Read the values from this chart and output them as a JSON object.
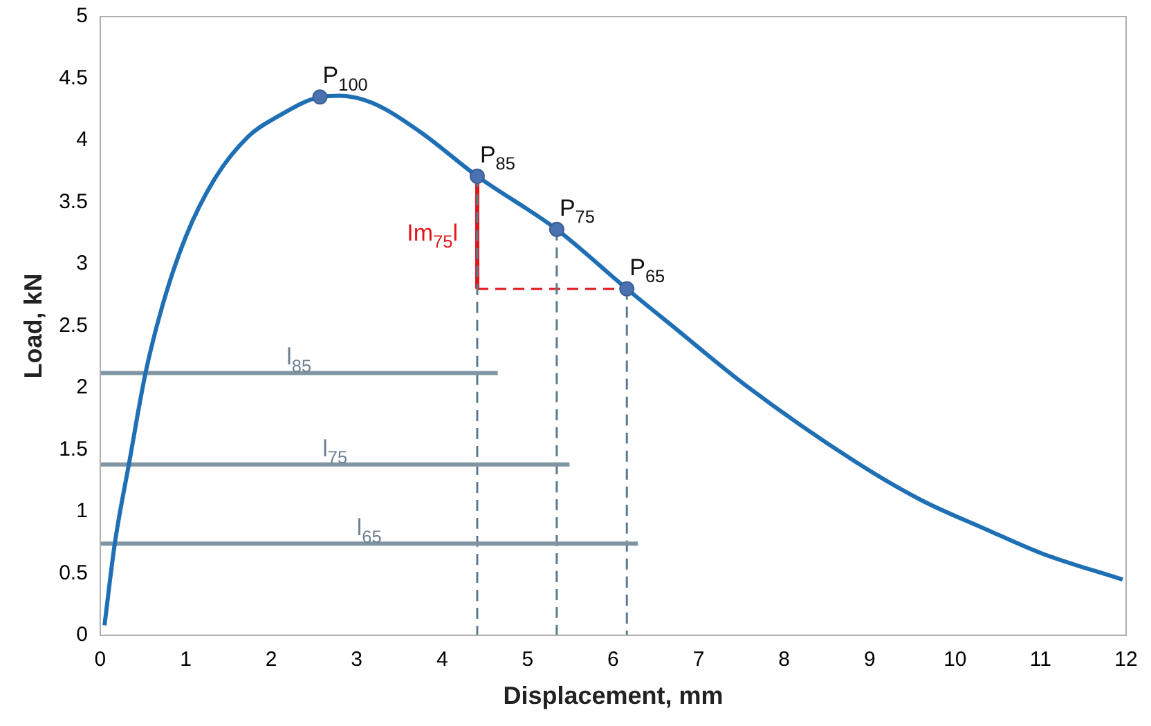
{
  "chart_data": {
    "type": "line",
    "xlabel": "Displacement, mm",
    "ylabel": "Load, kN",
    "xlim": [
      0,
      12
    ],
    "xticks": [
      0,
      1,
      2,
      3,
      4,
      5,
      6,
      7,
      8,
      9,
      10,
      11,
      12
    ],
    "ylim": [
      0,
      5
    ],
    "yticks": [
      0,
      0.5,
      1,
      1.5,
      2,
      2.5,
      3,
      3.5,
      4,
      4.5,
      5
    ],
    "legend": false,
    "series": [
      {
        "color": "#1f6fb5",
        "marker": "none",
        "line_style": "solid",
        "x": [
          0.05,
          0.17,
          0.34,
          0.53,
          0.73,
          1.0,
          1.34,
          1.73,
          2.07,
          2.57,
          2.8,
          3.19,
          3.74,
          4.41,
          5.34,
          6.16,
          6.71,
          7.55,
          8.84,
          9.61,
          10.35,
          11.02,
          11.96
        ],
        "values": [
          0.08,
          0.74,
          1.4,
          2.12,
          2.67,
          3.22,
          3.69,
          4.03,
          4.19,
          4.35,
          4.36,
          4.3,
          4.07,
          3.71,
          3.28,
          2.8,
          2.49,
          2.02,
          1.4,
          1.09,
          0.86,
          0.66,
          0.45
        ]
      },
      {
        "type": "line",
        "name": "l$_{85}$",
        "color": "#7f95a3",
        "marker": "none",
        "line_style": "solid",
        "x": [
          0,
          4.65
        ],
        "values": [
          2.12,
          2.12
        ]
      },
      {
        "type": "line",
        "name": "l$_{75}$",
        "color": "#7f95a3",
        "marker": "none",
        "line_style": "solid",
        "x": [
          0,
          5.49
        ],
        "values": [
          1.38,
          1.38
        ]
      },
      {
        "type": "line",
        "name": "l$_{65}$",
        "color": "#7f95a3",
        "marker": "none",
        "line_style": "solid",
        "x": [
          0,
          6.29
        ],
        "values": [
          0.74,
          0.74
        ]
      },
      {
        "type": "line",
        "color": "#5a7a90",
        "marker": "none",
        "line_style": "dashed",
        "x": [
          4.41,
          4.41
        ],
        "values": [
          3.71,
          0
        ]
      },
      {
        "type": "line",
        "color": "#5a7a90",
        "marker": "none",
        "line_style": "dashed",
        "x": [
          5.34,
          5.34
        ],
        "values": [
          3.28,
          0
        ]
      },
      {
        "type": "line",
        "color": "#5a7a90",
        "marker": "none",
        "line_style": "dashed",
        "x": [
          6.16,
          6.16
        ],
        "values": [
          2.8,
          0
        ]
      },
      {
        "type": "line",
        "name": "Im$_{75}$l",
        "color": "#e0161b",
        "marker": "none",
        "line_style": "solid",
        "x": [
          4.41,
          4.41
        ],
        "values": [
          3.71,
          2.8
        ]
      },
      {
        "type": "line",
        "color": "#e0161b",
        "marker": "none",
        "line_style": "dashed",
        "x": [
          4.41,
          6.16
        ],
        "values": [
          2.8,
          2.8
        ]
      },
      {
        "type": "scatter",
        "name": "P$_{100}$",
        "color": "#4a72b0",
        "marker": "circle",
        "x": [
          2.57
        ],
        "values": [
          4.35
        ]
      },
      {
        "type": "scatter",
        "name": "P$_{85}$",
        "color": "#4a72b0",
        "marker": "circle",
        "x": [
          4.41
        ],
        "values": [
          3.71
        ]
      },
      {
        "type": "scatter",
        "name": "P$_{75}$",
        "color": "#4a72b0",
        "marker": "circle",
        "x": [
          5.34
        ],
        "values": [
          3.28
        ]
      },
      {
        "type": "scatter",
        "name": "P$_{65}$",
        "color": "#4a72b0",
        "marker": "circle",
        "x": [
          6.16
        ],
        "values": [
          2.8
        ]
      }
    ]
  }
}
